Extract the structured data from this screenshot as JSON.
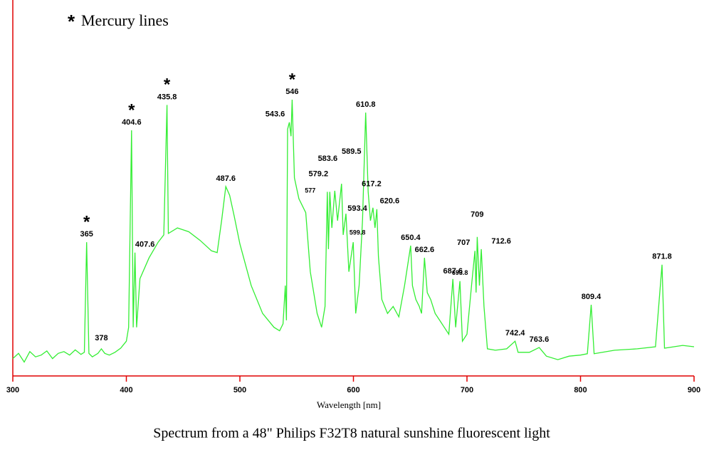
{
  "chart_data": {
    "type": "line",
    "title": "Spectrum from a 48\" Philips F32T8 natural sunshine fluorescent light",
    "xlabel": "Wavelength [nm]",
    "legend_marker": "*",
    "legend": "Mercury lines",
    "xlim": [
      300,
      900
    ],
    "xticks": [
      300,
      400,
      500,
      600,
      700,
      800,
      900
    ],
    "ylim": [
      0,
      100
    ],
    "axis_color": "#e00000",
    "series": [
      {
        "color": "#33ee33",
        "x": [
          300,
          305,
          310,
          315,
          320,
          325,
          330,
          335,
          340,
          345,
          350,
          355,
          360,
          363,
          365,
          367,
          370,
          375,
          378,
          381,
          385,
          390,
          395,
          400,
          402,
          404.6,
          406,
          407.6,
          409,
          412,
          420,
          428,
          433,
          435.8,
          437,
          445,
          455,
          465,
          475,
          480,
          484,
          487.6,
          491,
          495,
          500,
          510,
          520,
          530,
          535,
          538,
          540,
          541,
          542,
          543.6,
          545,
          546,
          548,
          552,
          558,
          562,
          568,
          572,
          575,
          577,
          578,
          579.2,
          581,
          583.6,
          586,
          589.5,
          591,
          593.4,
          596,
          599.8,
          602,
          605,
          608,
          610.8,
          613,
          615,
          617.2,
          619,
          620.6,
          622,
          625,
          630,
          635,
          640,
          645,
          650.4,
          652,
          655,
          658,
          660,
          662.6,
          665,
          668,
          672,
          676,
          680,
          684,
          687.6,
          690,
          693.8,
          696,
          700,
          704,
          707,
          708,
          709,
          711,
          712.6,
          715,
          718,
          725,
          735,
          742.4,
          745,
          755,
          763.6,
          770,
          780,
          790,
          800,
          806,
          809.4,
          812,
          830,
          850,
          866,
          871.8,
          874,
          890,
          900
        ],
        "values": [
          5,
          6.5,
          4,
          7,
          5.5,
          6,
          7.2,
          5,
          6.5,
          7,
          6,
          7.5,
          6.2,
          6.8,
          38.5,
          6.5,
          5.5,
          6.5,
          7.8,
          6.5,
          6,
          6.8,
          8,
          10,
          14,
          70.7,
          14,
          35.5,
          14,
          28,
          34,
          38.5,
          40.6,
          78,
          41,
          42.6,
          41.5,
          39,
          36,
          35.5,
          45,
          54.5,
          52,
          46,
          38,
          26,
          18,
          14,
          13,
          15,
          26,
          16,
          71,
          73,
          69,
          79.5,
          57,
          51,
          47,
          30,
          18,
          14,
          20,
          53,
          36.5,
          53,
          42.6,
          53.3,
          44.7,
          55.3,
          40.6,
          46.7,
          30,
          38.5,
          18,
          26,
          45,
          75.8,
          53,
          44.7,
          48.4,
          42.6,
          48,
          34.4,
          22,
          18,
          20,
          17,
          26,
          37.5,
          26,
          22,
          20,
          18,
          34,
          24,
          22,
          18,
          16,
          14,
          12,
          27.9,
          14,
          27.3,
          10,
          12,
          26,
          36,
          24,
          40,
          26,
          36.5,
          20,
          7.8,
          7.4,
          7.8,
          10,
          6.8,
          6.8,
          8.2,
          5.7,
          4.7,
          5.7,
          6,
          6.4,
          20.5,
          6.4,
          7.4,
          7.8,
          8.4,
          32,
          8,
          8.8,
          8.4
        ]
      }
    ],
    "mercury_marker": "*",
    "peaks": [
      {
        "x": 365,
        "mercury": true
      },
      {
        "x": 378
      },
      {
        "x": 404.6,
        "mercury": true
      },
      {
        "x": 407.6
      },
      {
        "x": 435.8,
        "mercury": true
      },
      {
        "x": 487.6
      },
      {
        "x": 543.6
      },
      {
        "x": 546,
        "mercury": true
      },
      {
        "x": 577
      },
      {
        "x": 579.2
      },
      {
        "x": 583.6
      },
      {
        "x": 589.5
      },
      {
        "x": 593.4
      },
      {
        "x": 599.8
      },
      {
        "x": 610.8
      },
      {
        "x": 617.2
      },
      {
        "x": 620.6
      },
      {
        "x": 650.4
      },
      {
        "x": 662.6
      },
      {
        "x": 687.6
      },
      {
        "x": 693.8
      },
      {
        "x": 707
      },
      {
        "x": 709
      },
      {
        "x": 712.6
      },
      {
        "x": 742.4
      },
      {
        "x": 763.6
      },
      {
        "x": 809.4
      },
      {
        "x": 871.8
      }
    ]
  }
}
